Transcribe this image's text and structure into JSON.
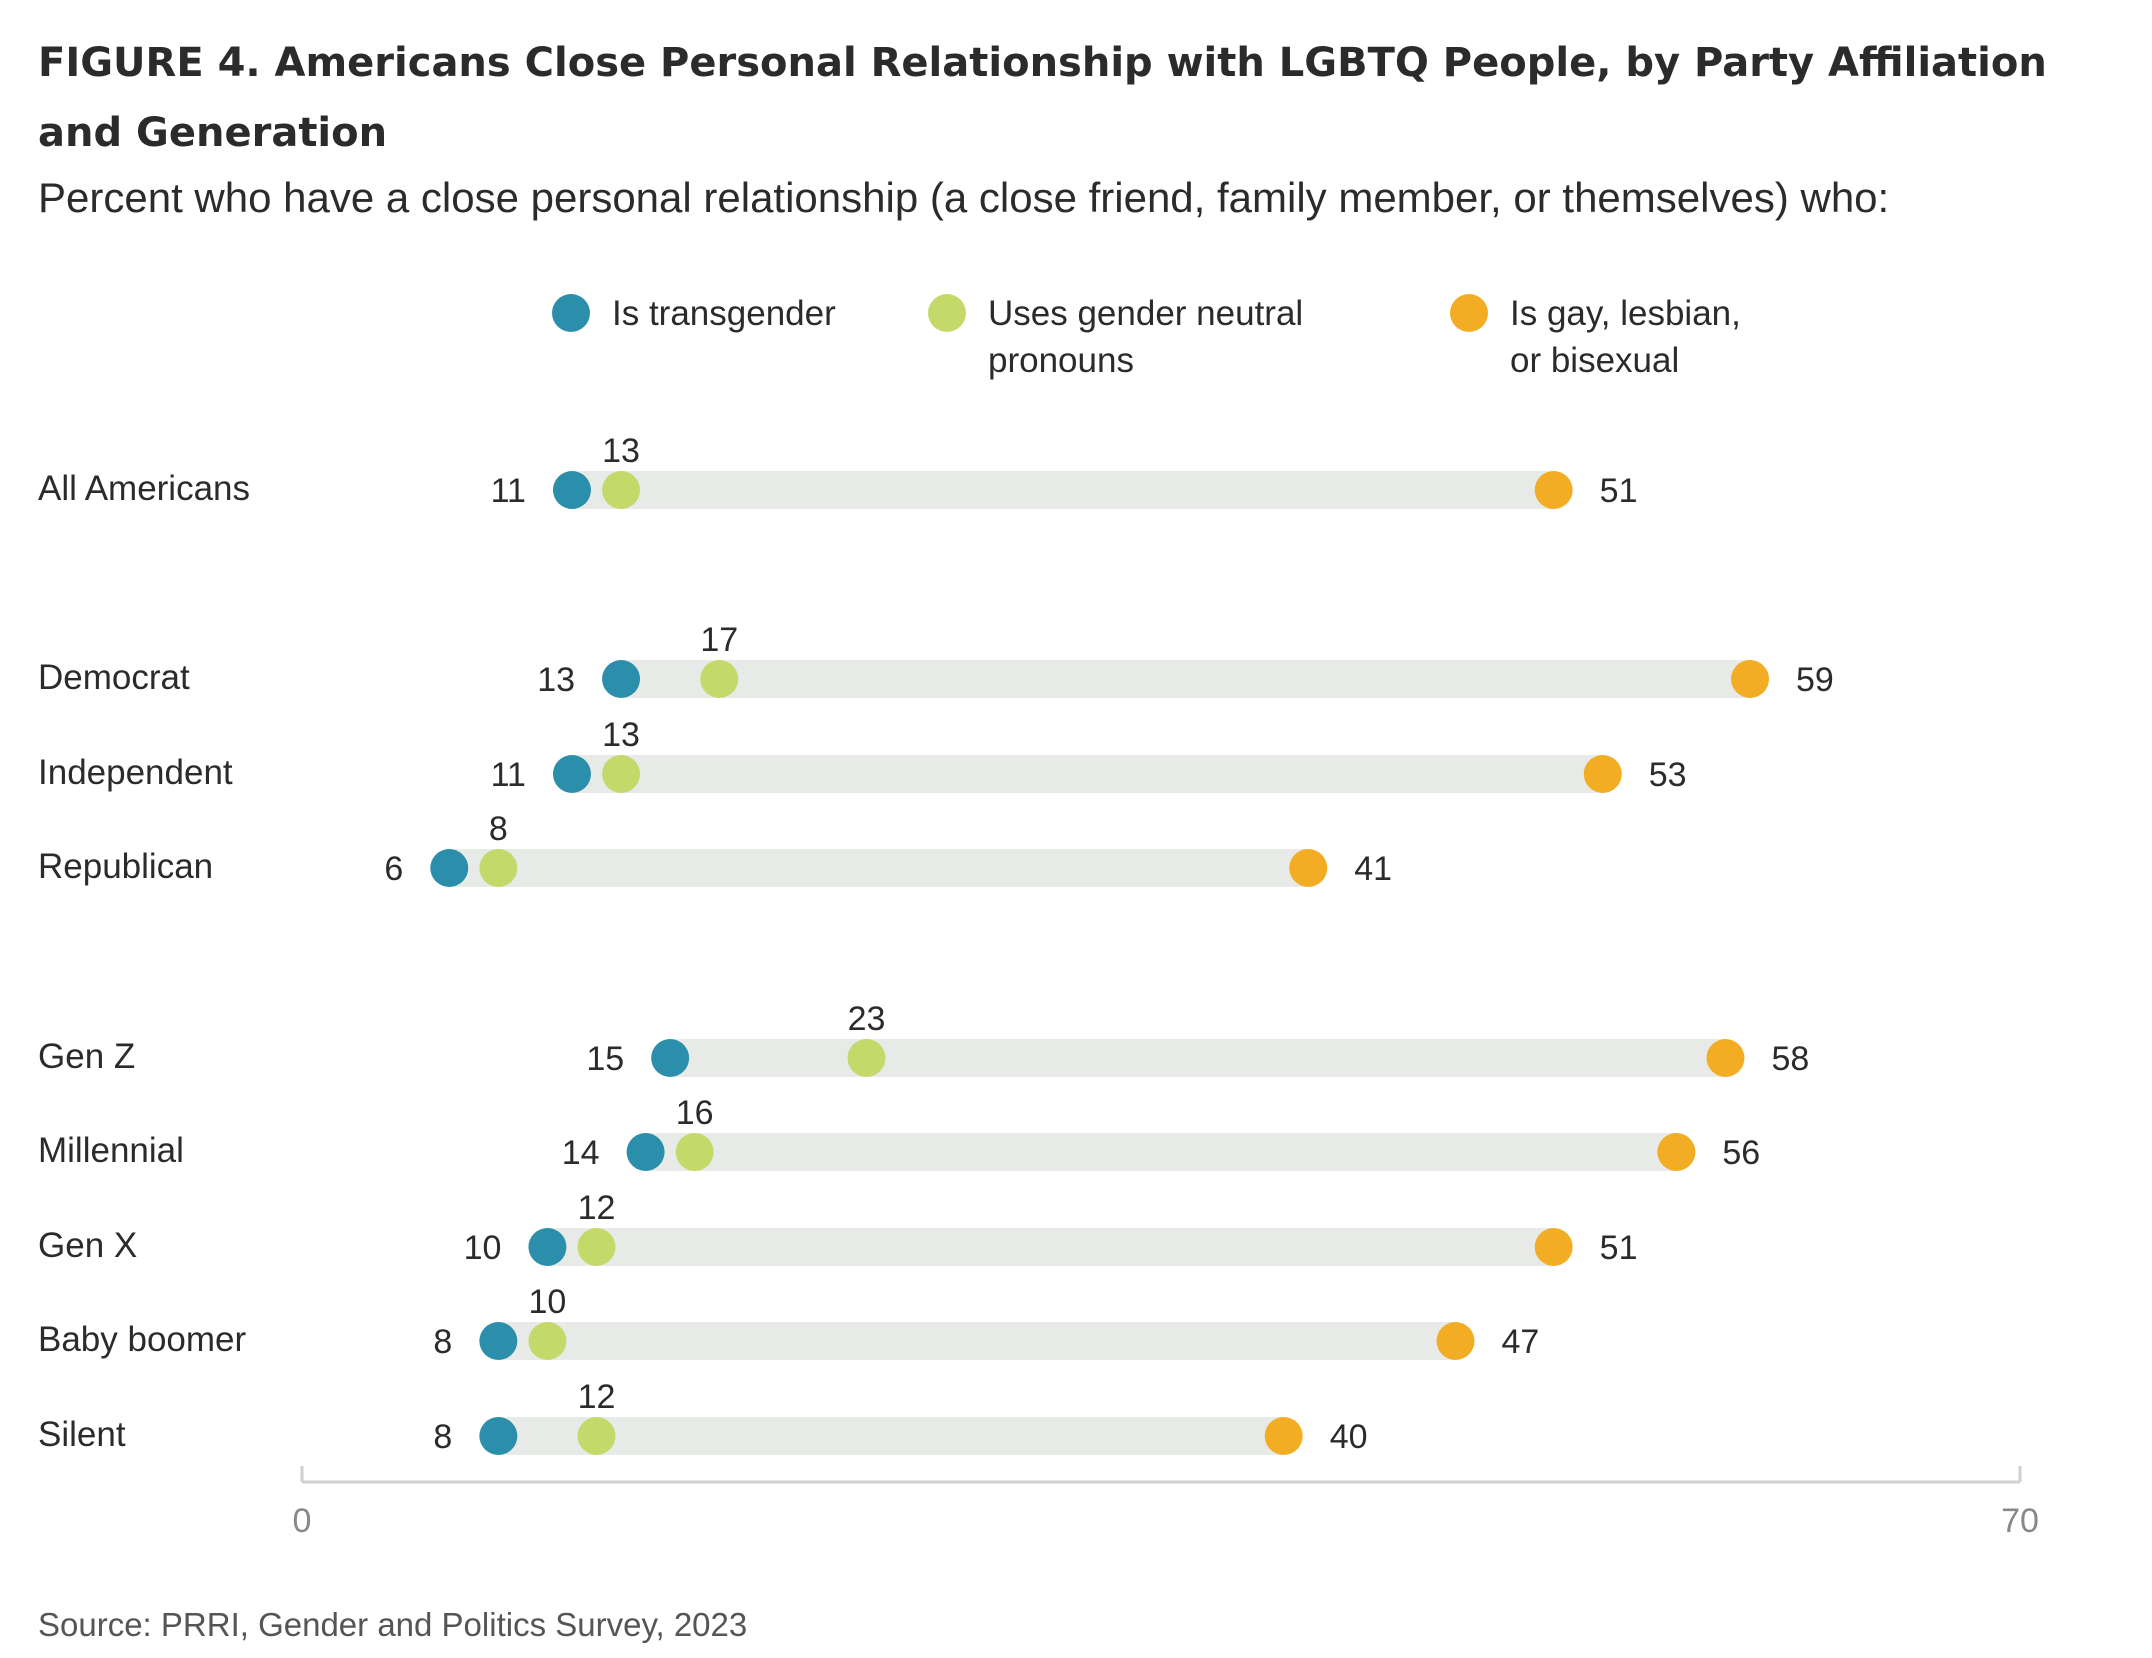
{
  "title": "FIGURE 4.  Americans Close Personal Relationship with LGBTQ People, by Party Affiliation and Generation",
  "subtitle": "Percent who have a close personal relationship (a close friend, family member, or themselves) who:",
  "source": "Source: PRRI, Gender and Politics Survey, 2023",
  "colors": {
    "transgender": "#2b8fac",
    "neutral": "#c5d96b",
    "lgb": "#f3ad24",
    "track": "#e8eae8",
    "axis": "#d0d0d0",
    "axis_text": "#888888"
  },
  "chart_data": {
    "type": "dot-range",
    "xlim": [
      0,
      70
    ],
    "ticks": [
      "0",
      "70"
    ],
    "series": [
      {
        "name": "Is transgender",
        "key": "transgender"
      },
      {
        "name": "Uses gender neutral pronouns",
        "key": "neutral"
      },
      {
        "name": "Is gay, lesbian, or bisexual",
        "key": "lgb"
      }
    ],
    "legend_lines": {
      "transgender": [
        "Is transgender"
      ],
      "neutral": [
        "Uses gender neutral",
        "pronouns"
      ],
      "lgb": [
        "Is gay, lesbian,",
        "or bisexual"
      ]
    },
    "rows": [
      {
        "label": "All Americans",
        "transgender": 11,
        "neutral": 13,
        "lgb": 51
      },
      {
        "label": "Democrat",
        "transgender": 13,
        "neutral": 17,
        "lgb": 59
      },
      {
        "label": "Independent",
        "transgender": 11,
        "neutral": 13,
        "lgb": 53
      },
      {
        "label": "Republican",
        "transgender": 6,
        "neutral": 8,
        "lgb": 41
      },
      {
        "label": "Gen Z",
        "transgender": 15,
        "neutral": 23,
        "lgb": 58
      },
      {
        "label": "Millennial",
        "transgender": 14,
        "neutral": 16,
        "lgb": 56
      },
      {
        "label": "Gen X",
        "transgender": 10,
        "neutral": 12,
        "lgb": 51
      },
      {
        "label": "Baby boomer",
        "transgender": 8,
        "neutral": 10,
        "lgb": 47
      },
      {
        "label": "Silent",
        "transgender": 8,
        "neutral": 12,
        "lgb": 40
      }
    ]
  }
}
